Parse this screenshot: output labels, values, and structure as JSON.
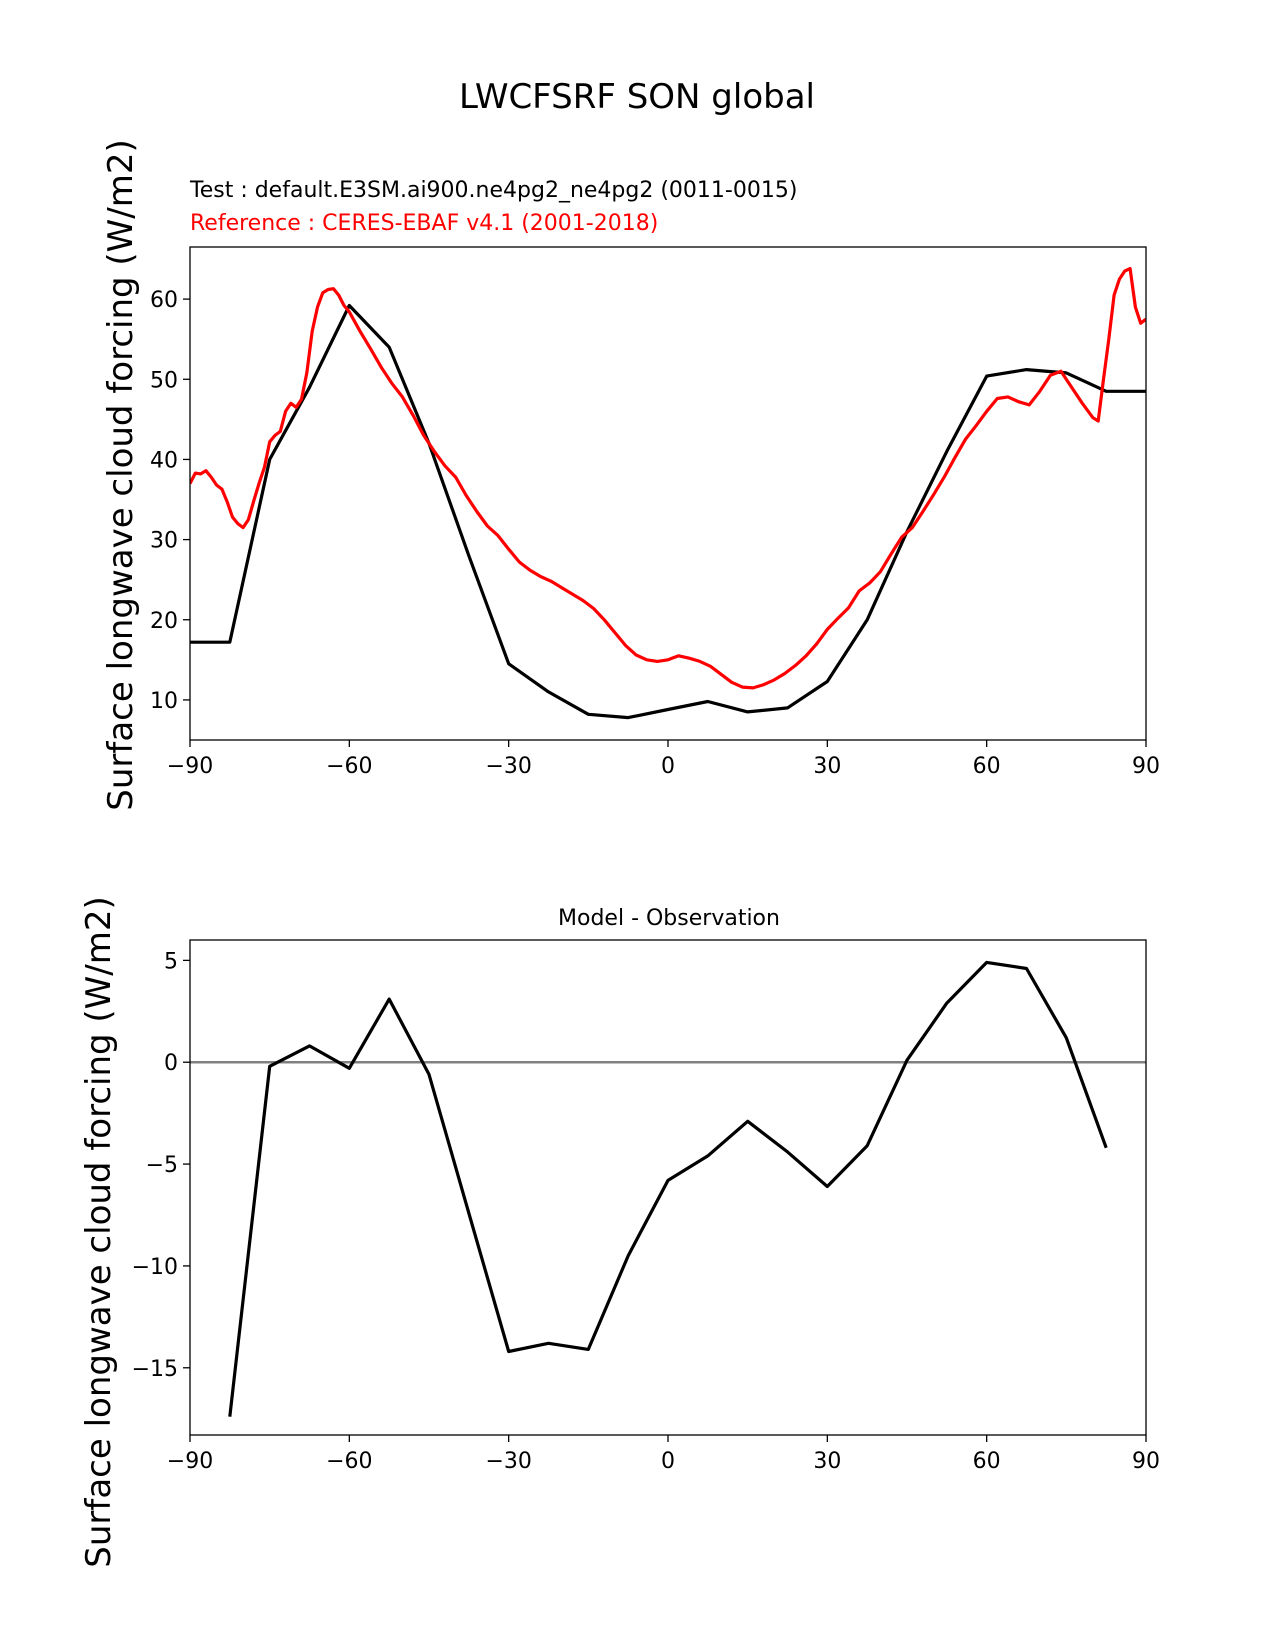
{
  "figure": {
    "title": "LWCFSRF SON global"
  },
  "chart_data": [
    {
      "type": "line",
      "subtitle_test": "Test : default.E3SM.ai900.ne4pg2_ne4pg2 (0011-0015)",
      "subtitle_ref": "Reference : CERES-EBAF v4.1 (2001-2018)",
      "xlabel": "",
      "ylabel": "Surface longwave cloud forcing (W/m2)",
      "xlim": [
        -90,
        90
      ],
      "ylim": [
        5,
        66.5
      ],
      "xticks": [
        -90,
        -60,
        -30,
        0,
        30,
        60,
        90
      ],
      "xtick_labels": [
        "−90",
        "−60",
        "−30",
        "0",
        "30",
        "60",
        "90"
      ],
      "yticks": [
        10,
        20,
        30,
        40,
        50,
        60
      ],
      "ytick_labels": [
        "10",
        "20",
        "30",
        "40",
        "50",
        "60"
      ],
      "grid": false,
      "series": [
        {
          "color": "#000000",
          "x": [
            -90,
            -82.5,
            -75,
            -67.5,
            -60,
            -52.5,
            -45,
            -37.5,
            -30,
            -22.5,
            -15,
            -7.5,
            0,
            7.5,
            15,
            22.5,
            30,
            37.5,
            45,
            52.5,
            60,
            67.5,
            75,
            82.5,
            90
          ],
          "y": [
            17.2,
            17.2,
            40,
            49,
            59.2,
            54,
            42,
            28,
            14.5,
            11,
            8.2,
            7.8,
            8.8,
            9.8,
            8.5,
            9,
            12.3,
            20,
            31,
            41,
            50.4,
            51.2,
            50.8,
            48.5,
            48.5
          ]
        },
        {
          "color": "#ff0000",
          "x": [
            -90,
            -89,
            -88,
            -87,
            -86,
            -85,
            -84,
            -83,
            -82,
            -81,
            -80,
            -79,
            -78,
            -77,
            -76,
            -75,
            -74,
            -73,
            -72,
            -71,
            -70,
            -69,
            -68,
            -67,
            -66,
            -65,
            -64,
            -63,
            -62,
            -61,
            -60,
            -58,
            -56,
            -54,
            -52,
            -50,
            -48,
            -46,
            -44,
            -42,
            -40,
            -38,
            -36,
            -34,
            -32,
            -30,
            -28,
            -26,
            -24,
            -22,
            -20,
            -18,
            -16,
            -14,
            -12,
            -10,
            -8,
            -6,
            -4,
            -2,
            0,
            2,
            4,
            6,
            8,
            10,
            12,
            14,
            16,
            18,
            20,
            22,
            24,
            26,
            28,
            30,
            32,
            34,
            36,
            38,
            40,
            42,
            44,
            46,
            48,
            50,
            52,
            54,
            56,
            58,
            60,
            62,
            64,
            66,
            68,
            70,
            72,
            74,
            76,
            78,
            80,
            81,
            82,
            83,
            84,
            85,
            86,
            87,
            88,
            89,
            90
          ],
          "y": [
            37,
            38.3,
            38.2,
            38.6,
            37.8,
            36.8,
            36.3,
            34.7,
            32.8,
            32,
            31.5,
            32.5,
            34.8,
            37,
            39,
            42.2,
            43,
            43.5,
            46,
            47,
            46.5,
            47.5,
            50.8,
            56,
            59,
            60.8,
            61.2,
            61.3,
            60.5,
            59.2,
            58.4,
            56,
            53.8,
            51.5,
            49.5,
            47.8,
            45.5,
            43,
            41,
            39.2,
            37.8,
            35.5,
            33.5,
            31.7,
            30.5,
            28.8,
            27.2,
            26.2,
            25.4,
            24.8,
            24,
            23.2,
            22.4,
            21.4,
            20,
            18.4,
            16.8,
            15.6,
            15,
            14.8,
            15,
            15.5,
            15.2,
            14.8,
            14.2,
            13.2,
            12.2,
            11.6,
            11.5,
            11.9,
            12.5,
            13.3,
            14.3,
            15.5,
            17,
            18.8,
            20.2,
            21.5,
            23.6,
            24.6,
            26,
            28.2,
            30.3,
            31.5,
            33.5,
            35.6,
            37.8,
            40.2,
            42.5,
            44.2,
            46,
            47.6,
            47.8,
            47.2,
            46.8,
            48.5,
            50.5,
            51,
            49,
            47,
            45.2,
            44.8,
            50,
            55,
            60.5,
            62.5,
            63.5,
            63.8,
            59,
            57,
            57.5
          ]
        }
      ]
    },
    {
      "type": "line",
      "title": "Model - Observation",
      "xlabel": "",
      "ylabel": "Surface longwave cloud forcing (W/m2)",
      "xlim": [
        -90,
        90
      ],
      "ylim": [
        -18.3,
        6
      ],
      "xticks": [
        -90,
        -60,
        -30,
        0,
        30,
        60,
        90
      ],
      "xtick_labels": [
        "−90",
        "−60",
        "−30",
        "0",
        "30",
        "60",
        "90"
      ],
      "yticks": [
        -15,
        -10,
        -5,
        0,
        5
      ],
      "ytick_labels": [
        "−15",
        "−10",
        "−5",
        "0",
        "5"
      ],
      "grid": false,
      "zero_line_color": "#808080",
      "series": [
        {
          "color": "#000000",
          "x": [
            -82.5,
            -75,
            -67.5,
            -60,
            -52.5,
            -45,
            -37.5,
            -30,
            -22.5,
            -15,
            -7.5,
            0,
            7.5,
            15,
            22.5,
            30,
            37.5,
            45,
            52.5,
            60,
            67.5,
            75,
            82.5
          ],
          "y": [
            -17.4,
            -0.2,
            0.8,
            -0.3,
            3.1,
            -0.6,
            -7.4,
            -14.2,
            -13.8,
            -14.1,
            -9.5,
            -5.8,
            -4.6,
            -2.9,
            -4.4,
            -6.1,
            -4.1,
            0.1,
            2.9,
            4.9,
            4.6,
            1.2,
            -4.2
          ]
        }
      ]
    }
  ]
}
